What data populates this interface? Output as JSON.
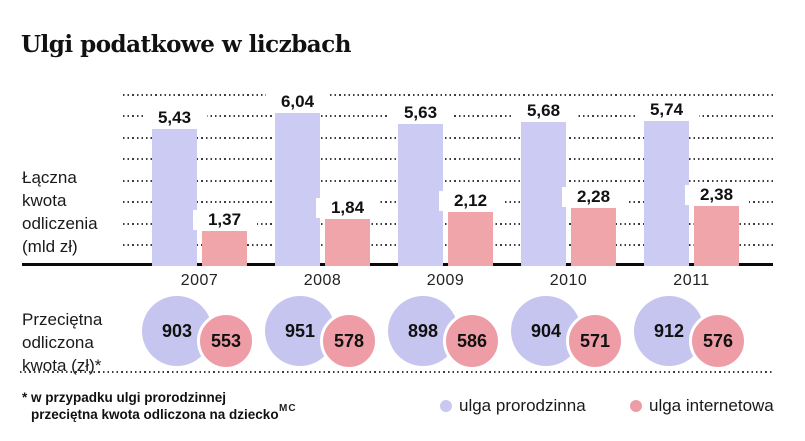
{
  "title": "Ulgi podatkowe w liczbach",
  "row_labels": {
    "bars": [
      "Łączna",
      "kwota",
      "odliczenia",
      "(mld zł)"
    ],
    "circles": [
      "Przeciętna",
      "odliczona",
      "kwota (zł)*"
    ]
  },
  "chart_data": {
    "type": "bar",
    "title": "Ulgi podatkowe w liczbach",
    "categories": [
      "2007",
      "2008",
      "2009",
      "2010",
      "2011"
    ],
    "series": [
      {
        "name": "ulga prorodzinna",
        "unit": "mld zł",
        "values": [
          5.43,
          6.04,
          5.63,
          5.68,
          5.74
        ],
        "color": "#cbcbf3"
      },
      {
        "name": "ulga internetowa",
        "unit": "mld zł",
        "values": [
          1.37,
          1.84,
          2.12,
          2.28,
          2.38
        ],
        "color": "#f0a5ab"
      }
    ],
    "avg_circles": [
      {
        "name": "ulga prorodzinna",
        "unit": "zł",
        "values": [
          903,
          951,
          898,
          904,
          912
        ],
        "color": "#c6c5f0"
      },
      {
        "name": "ulga internetowa",
        "unit": "zł",
        "values": [
          553,
          578,
          586,
          571,
          576
        ],
        "color": "#ee9da6"
      }
    ],
    "row_label_bars": "Łączna kwota odliczenia (mld zł)",
    "row_label_circles": "Przeciętna odliczona kwota (zł)*",
    "ylim": [
      0,
      7
    ],
    "grid": "dotted-horizontal",
    "legend_position": "bottom-right",
    "decimal_separator": ","
  },
  "legend": [
    {
      "label": "ulga prorodzinna",
      "color": "#c9c8f1"
    },
    {
      "label": "ulga internetowa",
      "color": "#ee9da6"
    }
  ],
  "footnote": {
    "line1": "* w przypadku ulgi prorodzinnej",
    "line2": "przeciętna kwota odliczona na dziecko"
  },
  "credit": "MC",
  "colors": {
    "background": "#ffffff",
    "text": "#1a1a1a",
    "axis_line": "#0a0a0a",
    "gridline": "#3c3c3c",
    "circle_rim": "#ffffff"
  }
}
